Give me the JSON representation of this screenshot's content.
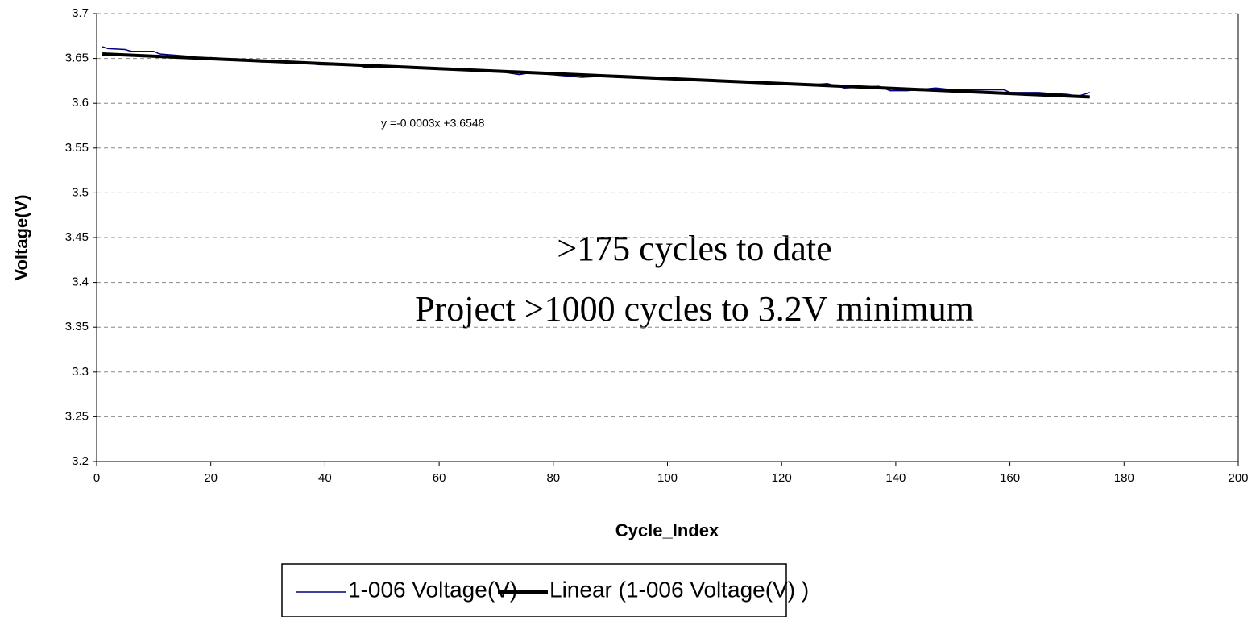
{
  "chart_data": {
    "type": "line",
    "x_label": "Cycle_Index",
    "y_label": "Voltage(V)",
    "annotations": [
      "y =-0.0003x +3.6548",
      ">175 cycles to date",
      "Project >1000 cycles to 3.2V minimum"
    ],
    "xlim": [
      0,
      200
    ],
    "xticks": [
      0,
      20,
      40,
      60,
      80,
      100,
      120,
      140,
      160,
      180,
      200
    ],
    "ylim": [
      3.2,
      3.7
    ],
    "yticks": [
      3.2,
      3.25,
      3.3,
      3.35,
      3.4,
      3.45,
      3.5,
      3.55,
      3.6,
      3.65,
      3.7
    ],
    "grid": true,
    "legend": "bottom",
    "series": [
      {
        "name": "1-006 Voltage(V)",
        "color": "#000080",
        "width": 1.5,
        "x": [
          1,
          2,
          5,
          6,
          10,
          11,
          17,
          18,
          20,
          29,
          33,
          39,
          46,
          47,
          50,
          60,
          70,
          74,
          76,
          85,
          88,
          98,
          108,
          118,
          126,
          128,
          131,
          137,
          139,
          142,
          147,
          150,
          159,
          160,
          165,
          167,
          170,
          172,
          174
        ],
        "values": [
          3.663,
          3.661,
          3.66,
          3.658,
          3.658,
          3.655,
          3.652,
          3.649,
          3.651,
          3.646,
          3.647,
          3.643,
          3.642,
          3.64,
          3.641,
          3.639,
          3.636,
          3.632,
          3.634,
          3.629,
          3.63,
          3.627,
          3.625,
          3.622,
          3.621,
          3.622,
          3.617,
          3.619,
          3.614,
          3.614,
          3.617,
          3.615,
          3.615,
          3.612,
          3.612,
          3.611,
          3.61,
          3.608,
          3.612
        ]
      },
      {
        "name": "Linear (1-006 Voltage(V) )",
        "color": "#000000",
        "width": 4,
        "x": [
          1,
          174
        ],
        "values": [
          3.655,
          3.607
        ]
      }
    ]
  }
}
